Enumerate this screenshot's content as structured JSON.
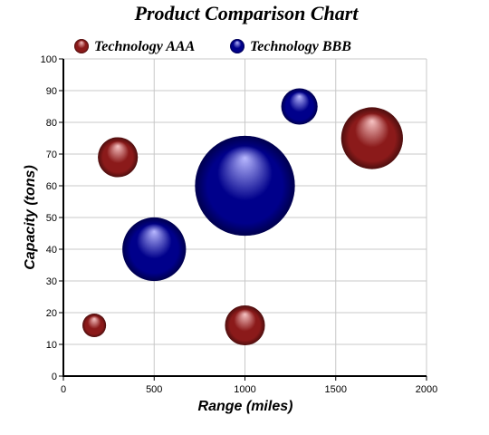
{
  "chart_data": {
    "type": "bubble",
    "title": "Product Comparison Chart",
    "xlabel": "Range (miles)",
    "ylabel": "Capacity (tons)",
    "xlim": [
      0,
      2000
    ],
    "ylim": [
      0,
      100
    ],
    "xticks": [
      0,
      500,
      1000,
      1500,
      2000
    ],
    "yticks": [
      0,
      10,
      20,
      30,
      40,
      50,
      60,
      70,
      80,
      90,
      100
    ],
    "grid": true,
    "legend_position": "top-left",
    "series": [
      {
        "name": "Technology AAA",
        "color": "#8b1a1a",
        "highlight": "#f7c4c4",
        "points": [
          {
            "x": 300,
            "y": 69,
            "size_x": 220
          },
          {
            "x": 1700,
            "y": 75,
            "size_x": 340
          },
          {
            "x": 1000,
            "y": 16,
            "size_x": 220
          },
          {
            "x": 170,
            "y": 16,
            "size_x": 130
          }
        ]
      },
      {
        "name": "Technology BBB",
        "color": "#00008b",
        "highlight": "#b8b8ff",
        "points": [
          {
            "x": 500,
            "y": 40,
            "size_x": 350
          },
          {
            "x": 1000,
            "y": 60,
            "size_x": 550
          },
          {
            "x": 1300,
            "y": 85,
            "size_x": 200
          }
        ]
      }
    ]
  }
}
